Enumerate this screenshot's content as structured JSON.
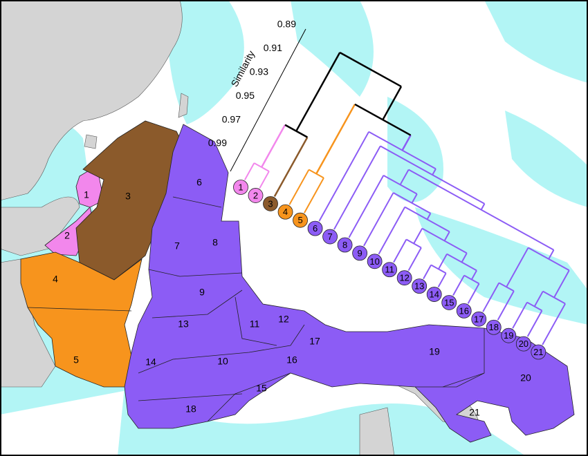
{
  "dendrogram": {
    "axis_label": "Similarity",
    "ticks": [
      0.89,
      0.91,
      0.93,
      0.95,
      0.97,
      0.99
    ]
  },
  "regions": [
    {
      "label": "1",
      "color": "#f287ec"
    },
    {
      "label": "2",
      "color": "#f287ec"
    },
    {
      "label": "3",
      "color": "#8b5a2b"
    },
    {
      "label": "4",
      "color": "#f7941d"
    },
    {
      "label": "5",
      "color": "#f7941d"
    },
    {
      "label": "6",
      "color": "#8c5cf5"
    },
    {
      "label": "7",
      "color": "#8c5cf5"
    },
    {
      "label": "8",
      "color": "#8c5cf5"
    },
    {
      "label": "9",
      "color": "#8c5cf5"
    },
    {
      "label": "10",
      "color": "#8c5cf5"
    },
    {
      "label": "11",
      "color": "#8c5cf5"
    },
    {
      "label": "12",
      "color": "#8c5cf5"
    },
    {
      "label": "13",
      "color": "#8c5cf5"
    },
    {
      "label": "14",
      "color": "#8c5cf5"
    },
    {
      "label": "15",
      "color": "#8c5cf5"
    },
    {
      "label": "16",
      "color": "#8c5cf5"
    },
    {
      "label": "17",
      "color": "#8c5cf5"
    },
    {
      "label": "18",
      "color": "#8c5cf5"
    },
    {
      "label": "19",
      "color": "#8c5cf5"
    },
    {
      "label": "20",
      "color": "#8c5cf5"
    },
    {
      "label": "21",
      "color": "#8c5cf5"
    }
  ],
  "leaves": [
    "1",
    "2",
    "3",
    "4",
    "5",
    "6",
    "7",
    "8",
    "9",
    "10",
    "11",
    "12",
    "13",
    "14",
    "15",
    "16",
    "17",
    "18",
    "19",
    "20",
    "21"
  ]
}
